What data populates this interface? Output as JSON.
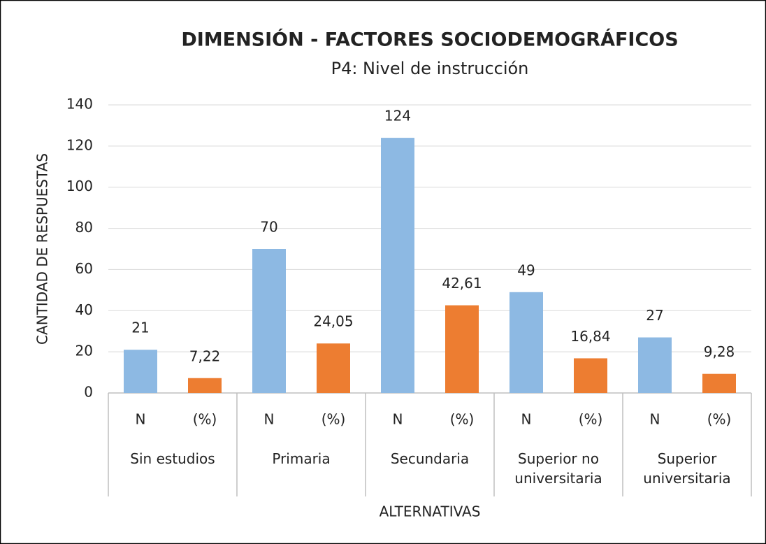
{
  "chart_data": {
    "type": "bar",
    "title": "DIMENSIÓN - FACTORES SOCIODEMOGRÁFICOS",
    "subtitle": "P4: Nivel de instrucción",
    "y_label": "CANTIDAD DE RESPUESTAS",
    "x_label": "ALTERNATIVAS",
    "categories": [
      "N",
      "(%)",
      "N",
      "(%)",
      "N",
      "(%)",
      "N",
      "(%)",
      "N",
      "(%)"
    ],
    "groups": [
      "Sin estudios",
      "Primaria",
      "Secundaria",
      "Superior no universitaria",
      "Superior universitaria"
    ],
    "values": [
      21,
      7.22,
      70,
      24.05,
      124,
      42.61,
      49,
      16.84,
      27,
      9.28
    ],
    "value_labels": [
      "21",
      "7,22",
      "70",
      "24,05",
      "124",
      "42,61",
      "49",
      "16,84",
      "27",
      "9,28"
    ],
    "colors": [
      "#8db9e3",
      "#ed7d31"
    ],
    "ylim": [
      0,
      140
    ],
    "yticks": [
      0,
      20,
      40,
      60,
      80,
      100,
      120,
      140
    ],
    "grid": true
  }
}
